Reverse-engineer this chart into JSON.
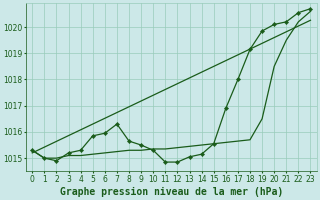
{
  "x": [
    0,
    1,
    2,
    3,
    4,
    5,
    6,
    7,
    8,
    9,
    10,
    11,
    12,
    13,
    14,
    15,
    16,
    17,
    18,
    19,
    20,
    21,
    22,
    23
  ],
  "y_main": [
    1015.3,
    1015.0,
    1014.9,
    1015.2,
    1015.3,
    1015.85,
    1015.95,
    1016.3,
    1015.65,
    1015.5,
    1015.3,
    1014.85,
    1014.85,
    1015.05,
    1015.15,
    1015.55,
    1016.9,
    1018.0,
    1019.15,
    1019.85,
    1020.1,
    1020.2,
    1020.55,
    1020.7
  ],
  "y_flat": [
    1015.3,
    1015.0,
    1015.0,
    1015.1,
    1015.1,
    1015.15,
    1015.2,
    1015.25,
    1015.3,
    1015.3,
    1015.35,
    1015.35,
    1015.4,
    1015.45,
    1015.5,
    1015.55,
    1015.6,
    1015.65,
    1015.7,
    1016.5,
    1018.5,
    1019.5,
    1020.2,
    1020.6
  ],
  "y_linear": [
    1015.2,
    1015.42,
    1015.64,
    1015.86,
    1016.08,
    1016.3,
    1016.52,
    1016.74,
    1016.96,
    1017.18,
    1017.4,
    1017.62,
    1017.84,
    1018.06,
    1018.28,
    1018.5,
    1018.72,
    1018.94,
    1019.16,
    1019.38,
    1019.6,
    1019.82,
    1020.04,
    1020.26
  ],
  "bg_color": "#cce8e8",
  "grid_color": "#99ccbb",
  "line_color": "#1a5c1a",
  "xlabel": "Graphe pression niveau de la mer (hPa)",
  "ylim": [
    1014.5,
    1020.9
  ],
  "yticks": [
    1015,
    1016,
    1017,
    1018,
    1019,
    1020
  ],
  "xticks": [
    0,
    1,
    2,
    3,
    4,
    5,
    6,
    7,
    8,
    9,
    10,
    11,
    12,
    13,
    14,
    15,
    16,
    17,
    18,
    19,
    20,
    21,
    22,
    23
  ],
  "xlabel_fontsize": 7.0,
  "tick_fontsize": 5.5,
  "figsize": [
    3.2,
    2.0
  ],
  "dpi": 100
}
